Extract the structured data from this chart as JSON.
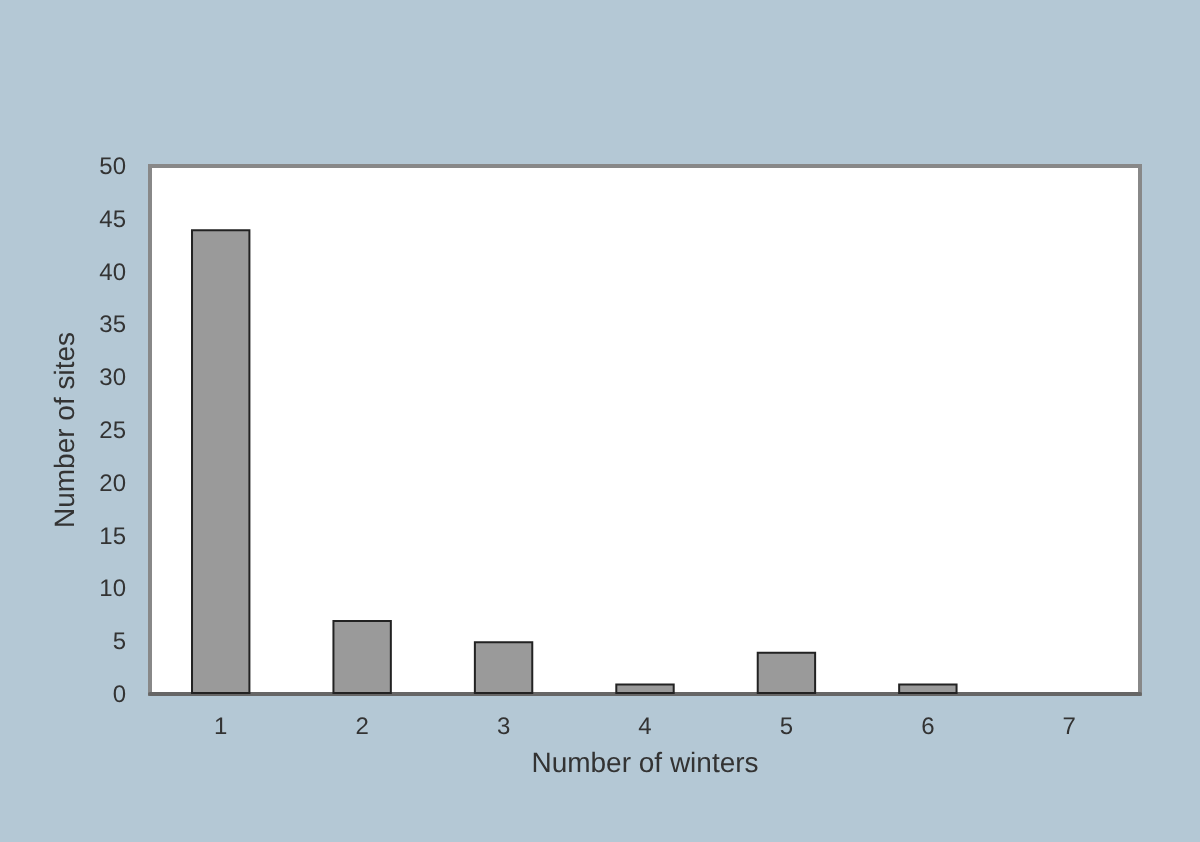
{
  "chart_data": {
    "type": "bar",
    "xlabel": "Number of winters",
    "ylabel": "Number of sites",
    "categories": [
      "1",
      "2",
      "3",
      "4",
      "5",
      "6",
      "7"
    ],
    "values": [
      44,
      7,
      5,
      1,
      4,
      1,
      0
    ],
    "color": "#9a9a9a",
    "ylim": [
      0,
      50
    ],
    "yticks": [
      0,
      5,
      10,
      15,
      20,
      25,
      30,
      35,
      40,
      45,
      50
    ],
    "grid": false
  }
}
